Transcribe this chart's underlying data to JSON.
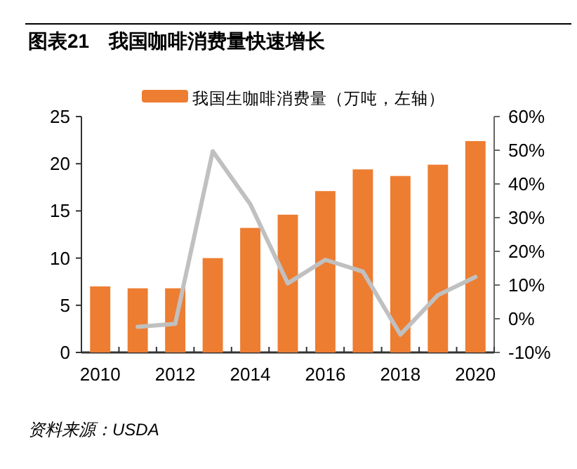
{
  "chart_data": {
    "type": "bar",
    "title": "图表21　我国咖啡消费量快速增长",
    "categories": [
      "2010",
      null,
      "2012",
      null,
      "2014",
      null,
      "2016",
      null,
      "2018",
      null,
      "2020"
    ],
    "series": [
      {
        "name": "我国生咖啡消费量（万吨，左轴）",
        "color": "#ed7d31",
        "values": [
          7.0,
          6.8,
          6.8,
          10.0,
          13.2,
          14.6,
          17.1,
          19.4,
          18.7,
          19.9,
          22.4
        ]
      },
      {
        "type": "line",
        "axis": "y2",
        "color": "#c0c0c0",
        "values": [
          null,
          -2.4,
          -1.5,
          49.7,
          34.0,
          10.5,
          17.5,
          14.0,
          -4.7,
          7.0,
          12.4
        ]
      }
    ],
    "ylim": [
      0,
      25
    ],
    "yticks": [
      0,
      5,
      10,
      15,
      20,
      25
    ],
    "y2lim": [
      -10,
      60
    ],
    "y2ticks": [
      {
        "value": -10,
        "label": "-10%"
      },
      {
        "value": 0,
        "label": "0%"
      },
      {
        "value": 10,
        "label": "10%"
      },
      {
        "value": 20,
        "label": "20%"
      },
      {
        "value": 30,
        "label": "30%"
      },
      {
        "value": 40,
        "label": "40%"
      },
      {
        "value": 50,
        "label": "50%"
      },
      {
        "value": 60,
        "label": "60%"
      }
    ],
    "legend": "top",
    "annotations": [
      "资料来源：USDA"
    ]
  }
}
